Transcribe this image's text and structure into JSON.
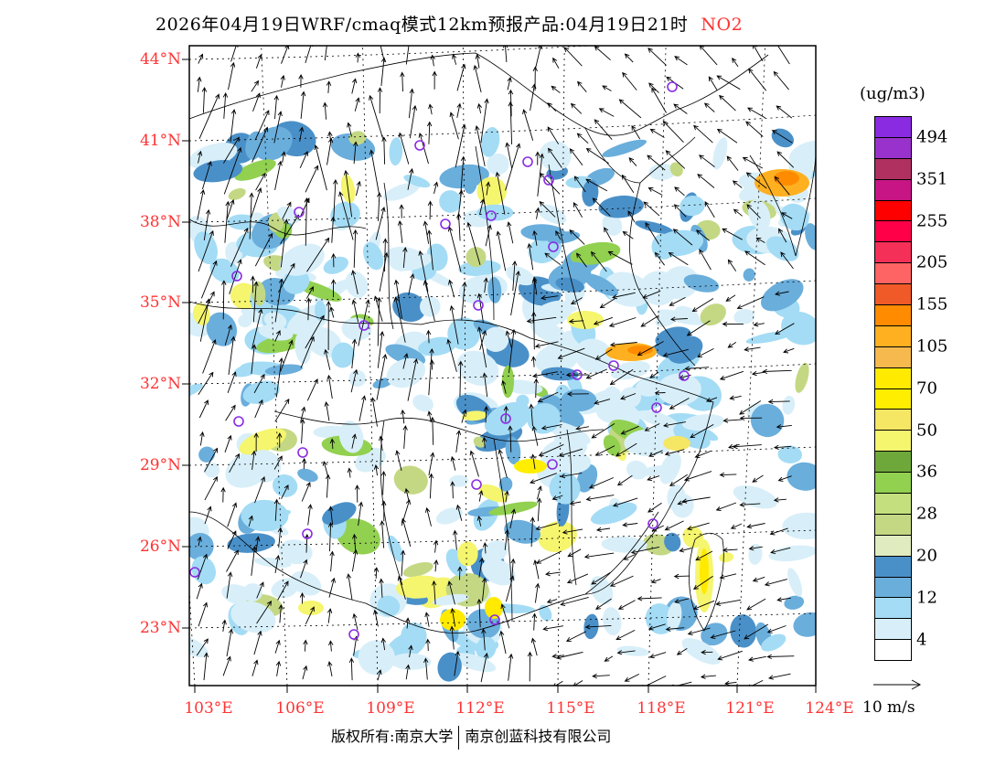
{
  "title": {
    "main": "2026年04月19日WRF/cmaq模式12km预报产品:04月19日21时",
    "species": "NO2"
  },
  "lat_labels": [
    "44°N",
    "41°N",
    "38°N",
    "35°N",
    "32°N",
    "29°N",
    "26°N",
    "23°N"
  ],
  "lon_labels": [
    "103°E",
    "106°E",
    "109°E",
    "112°E",
    "115°E",
    "118°E",
    "121°E",
    "124°E"
  ],
  "colorbar": {
    "unit": "(ug/m3)",
    "colors": [
      "#8a2be2",
      "#9932cc",
      "#b03060",
      "#c71585",
      "#ff0000",
      "#ff0048",
      "#f53058",
      "#ff6464",
      "#f05a28",
      "#ff8c00",
      "#ffb020",
      "#f5b94d",
      "#ffea00",
      "#ffee00",
      "#f5e664",
      "#f5f56e",
      "#6fa83a",
      "#92d050",
      "#c4e07e",
      "#c4d884",
      "#e0ecc0",
      "#4a90c8",
      "#6aaedc",
      "#a4dcf5",
      "#d8eff9",
      "#ffffff"
    ],
    "labels": [
      "494",
      "351",
      "255",
      "205",
      "155",
      "105",
      "70",
      "50",
      "36",
      "28",
      "20",
      "12",
      "4"
    ]
  },
  "wind_reference": "10 m/s",
  "footer": {
    "left": "版权所有:南京大学",
    "right": "南京创蓝科技有限公司"
  },
  "colors": {
    "accent": "#ff3333",
    "station": "#8a2be2"
  }
}
